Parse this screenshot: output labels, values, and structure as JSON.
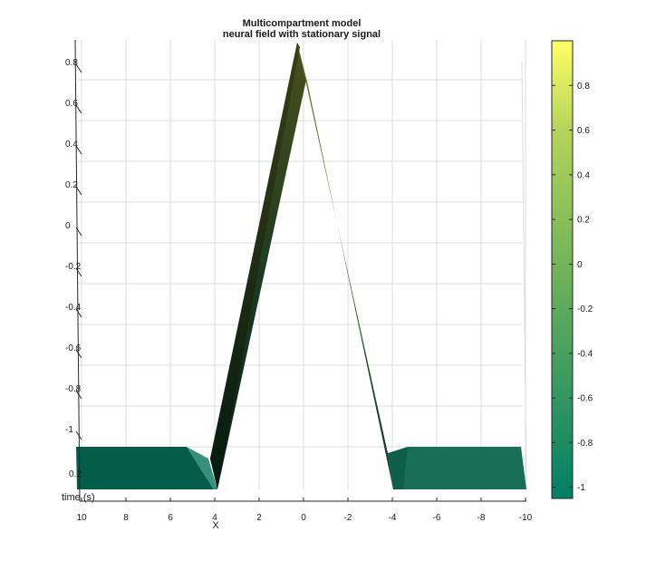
{
  "chart_data": {
    "type": "surface",
    "title": "Multicompartment model",
    "subtitle": "neural field with stationary signal",
    "xlabel": "X",
    "ylabel": "time (s)",
    "x_ticks": [
      "10",
      "8",
      "6",
      "4",
      "2",
      "0",
      "-2",
      "-4",
      "-6",
      "-8",
      "-10"
    ],
    "z_ticks": [
      "0.8",
      "0.6",
      "0.4",
      "0.2",
      "0",
      "-0.2",
      "-0.4",
      "-0.6",
      "-0.8",
      "-1"
    ],
    "time_ticks": [
      "0.2"
    ],
    "colorbar_ticks": [
      "0.8",
      "0.6",
      "0.4",
      "0.2",
      "0",
      "-0.2",
      "-0.4",
      "-0.6",
      "-0.8",
      "-1"
    ],
    "xlim": [
      -10,
      10
    ],
    "zlim": [
      -1.05,
      1.0
    ],
    "colorbar_range": [
      -1.05,
      1.0
    ],
    "colormap": [
      "#007f66",
      "#2e9462",
      "#5aa95c",
      "#86be59",
      "#b4d35a",
      "#ffff66"
    ],
    "profile": {
      "x": [
        10,
        5.3,
        4.1,
        0,
        -3.8,
        -10
      ],
      "z": [
        -1.0,
        -1.0,
        -1.0,
        0.97,
        -1.0,
        -1.0
      ]
    },
    "grid": true
  }
}
